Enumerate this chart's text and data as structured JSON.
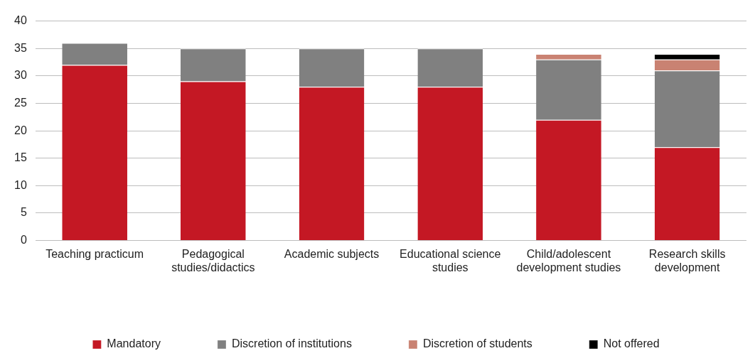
{
  "chart_data": {
    "type": "bar",
    "stacked": true,
    "categories": [
      "Teaching practicum",
      "Pedagogical studies/didactics",
      "Academic subjects",
      "Educational science studies",
      "Child/adolescent development studies",
      "Research skills development"
    ],
    "series": [
      {
        "name": "Mandatory",
        "color": "#c41824",
        "values": [
          32,
          29,
          28,
          28,
          22,
          17
        ]
      },
      {
        "name": "Discretion of institutions",
        "color": "#808080",
        "values": [
          4,
          6,
          7,
          7,
          11,
          14
        ]
      },
      {
        "name": "Discretion of students",
        "color": "#c98272",
        "values": [
          null,
          null,
          null,
          null,
          1,
          2
        ]
      },
      {
        "name": "Not offered",
        "color": "#000000",
        "values": [
          null,
          null,
          null,
          null,
          null,
          1
        ]
      }
    ],
    "ylim": [
      0,
      40
    ],
    "yticks": [
      0,
      5,
      10,
      15,
      20,
      25,
      30,
      35,
      40
    ],
    "grid": "y",
    "legend": "bottom"
  }
}
